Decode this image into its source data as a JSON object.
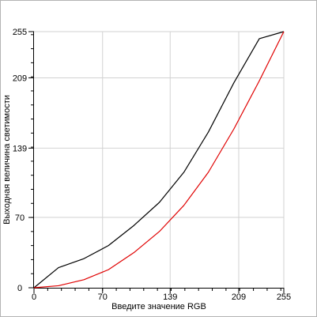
{
  "chart_data": {
    "type": "line",
    "title": "",
    "xlabel": "Введите значение RGB",
    "ylabel": "Выходная величина светимости",
    "xlim": [
      0,
      255
    ],
    "ylim": [
      0,
      255
    ],
    "x_ticks": [
      0,
      70,
      139,
      209,
      255
    ],
    "y_ticks": [
      0,
      70,
      139,
      209,
      255
    ],
    "grid": true,
    "series": [
      {
        "color": "#000000",
        "x": [
          0,
          25,
          51,
          76,
          102,
          128,
          153,
          178,
          204,
          230,
          255
        ],
        "y": [
          0,
          20,
          29,
          42,
          62,
          85,
          115,
          155,
          204,
          248,
          255
        ]
      },
      {
        "color": "#e00000",
        "x": [
          0,
          25,
          51,
          76,
          102,
          128,
          153,
          178,
          204,
          230,
          255
        ],
        "y": [
          0,
          2,
          8,
          18,
          35,
          56,
          82,
          115,
          158,
          206,
          255
        ]
      }
    ]
  }
}
